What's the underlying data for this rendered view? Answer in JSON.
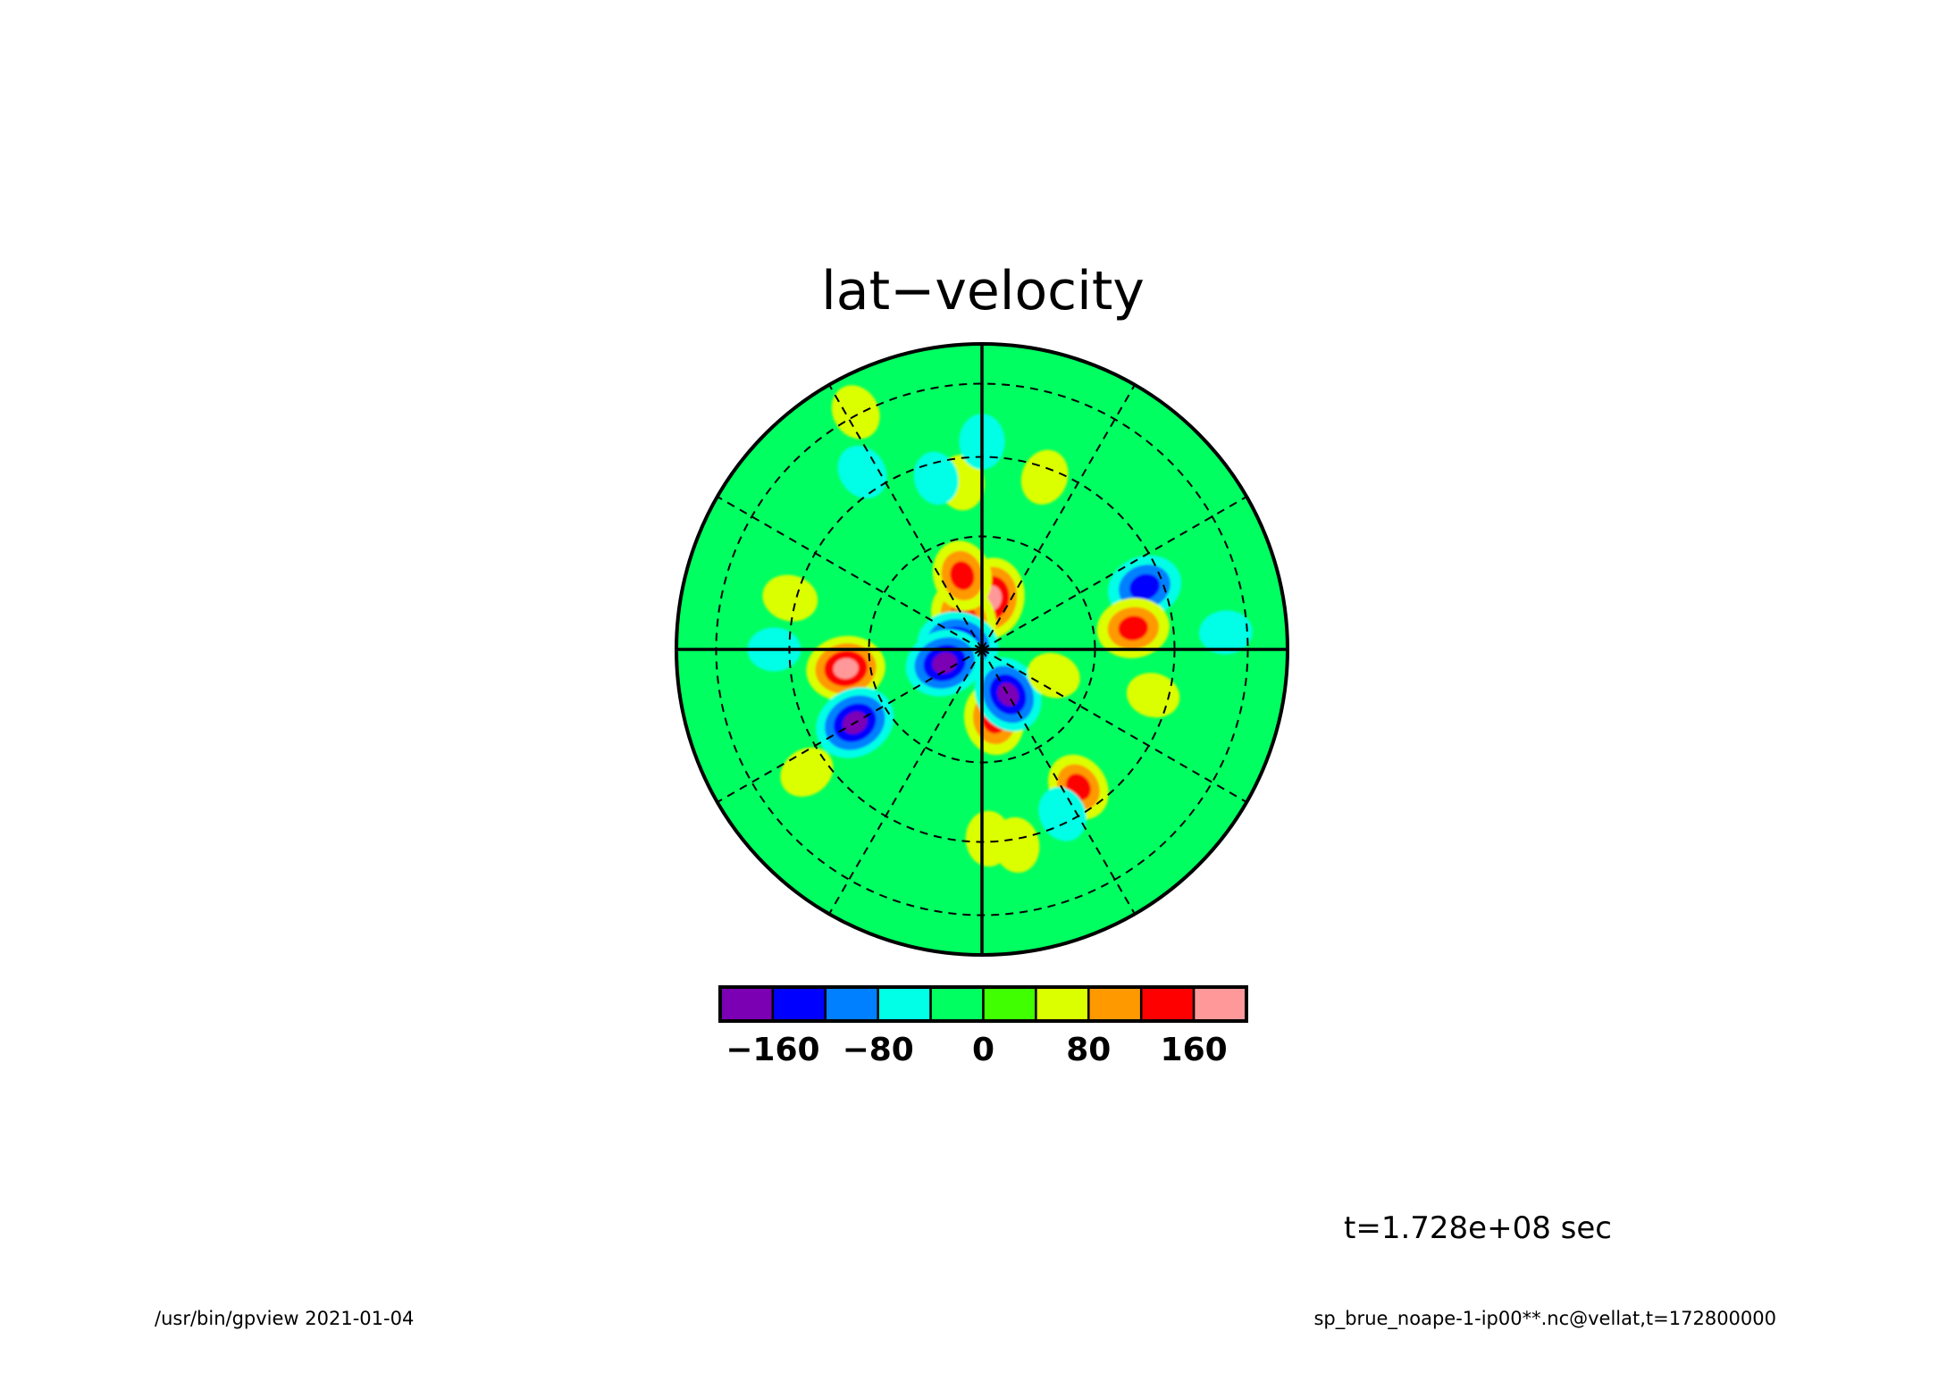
{
  "title": "lat−velocity",
  "time_label": "t=1.728e+08 sec",
  "footer_left": "/usr/bin/gpview  2021-01-04",
  "footer_right": "sp_brue_noape-1-ip00**.nc@vellat,t=172800000",
  "chart_data": {
    "type": "heatmap",
    "projection": "polar-stereographic",
    "title": "lat−velocity",
    "colorbar": {
      "bins": [
        {
          "from": -200,
          "to": -160,
          "color": "#7b00b4"
        },
        {
          "from": -160,
          "to": -120,
          "color": "#0000ff"
        },
        {
          "from": -120,
          "to": -80,
          "color": "#0080ff"
        },
        {
          "from": -80,
          "to": -40,
          "color": "#00ffe6"
        },
        {
          "from": -40,
          "to": 0,
          "color": "#00ff60"
        },
        {
          "from": 0,
          "to": 40,
          "color": "#40ff00"
        },
        {
          "from": 40,
          "to": 80,
          "color": "#dcff00"
        },
        {
          "from": 80,
          "to": 120,
          "color": "#ff9900"
        },
        {
          "from": 120,
          "to": 160,
          "color": "#ff0000"
        },
        {
          "from": 160,
          "to": 200,
          "color": "#ff9999"
        }
      ],
      "tick_values": [
        -160,
        -80,
        0,
        80,
        160
      ],
      "tick_labels": [
        "−160",
        "−80",
        "0",
        "80",
        "160"
      ]
    },
    "background_level": -20,
    "features": [
      {
        "r": 0.17,
        "angle": 80,
        "value": 180
      },
      {
        "r": 0.12,
        "angle": 120,
        "value": 150
      },
      {
        "r": 0.25,
        "angle": 105,
        "value": 130
      },
      {
        "r": 0.08,
        "angle": 170,
        "value": -180
      },
      {
        "r": 0.13,
        "angle": 200,
        "value": -170
      },
      {
        "r": 0.45,
        "angle": 188,
        "value": 170
      },
      {
        "r": 0.48,
        "angle": 210,
        "value": -180
      },
      {
        "r": 0.23,
        "angle": 280,
        "value": 140
      },
      {
        "r": 0.17,
        "angle": 300,
        "value": -160
      },
      {
        "r": 0.57,
        "angle": 21,
        "value": -150
      },
      {
        "r": 0.5,
        "angle": 8,
        "value": 140
      },
      {
        "r": 0.55,
        "angle": 305,
        "value": 120
      },
      {
        "r": 0.65,
        "angle": 280,
        "value": 60
      },
      {
        "r": 0.6,
        "angle": 296,
        "value": -60
      },
      {
        "r": 0.55,
        "angle": 97,
        "value": 60
      },
      {
        "r": 0.58,
        "angle": 105,
        "value": -50
      },
      {
        "r": 0.6,
        "angle": 70,
        "value": 60
      },
      {
        "r": 0.68,
        "angle": 90,
        "value": -60
      },
      {
        "r": 0.7,
        "angle": 124,
        "value": -60
      },
      {
        "r": 0.65,
        "angle": 165,
        "value": 60
      },
      {
        "r": 0.68,
        "angle": 180,
        "value": -50
      },
      {
        "r": 0.7,
        "angle": 215,
        "value": 60
      },
      {
        "r": 0.88,
        "angle": 118,
        "value": 60
      },
      {
        "r": 0.62,
        "angle": 272,
        "value": 60
      },
      {
        "r": 0.25,
        "angle": 340,
        "value": 50
      },
      {
        "r": 0.8,
        "angle": 4,
        "value": -50
      },
      {
        "r": 0.58,
        "angle": 345,
        "value": 50
      }
    ]
  }
}
